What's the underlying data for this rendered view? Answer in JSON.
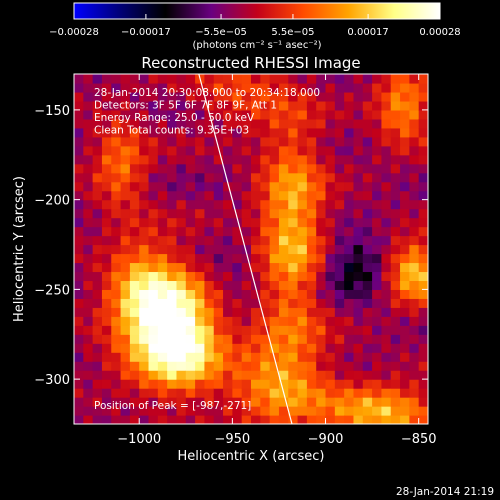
{
  "chart_data": {
    "type": "heatmap",
    "title": "Reconstructed RHESSI Image",
    "xlabel": "Heliocentric X (arcsec)",
    "ylabel": "Heliocentric Y (arcsec)",
    "xlim": [
      -1035,
      -845
    ],
    "ylim": [
      -325,
      -130
    ],
    "xticks": [
      -1000,
      -950,
      -900,
      -850
    ],
    "xtick_labels": [
      "−1000",
      "−950",
      "−900",
      "−850"
    ],
    "yticks": [
      -150,
      -200,
      -250,
      -300
    ],
    "ytick_labels": [
      "−150",
      "−200",
      "−250",
      "−300"
    ],
    "colorbar": {
      "unit_label": "(photons cm⁻² s⁻¹ asec⁻²)",
      "range": [
        -0.00028,
        0.00028
      ],
      "ticks": [
        -0.00028,
        -0.00017,
        -5.5e-05,
        5.5e-05,
        0.00017,
        0.00028
      ],
      "tick_labels": [
        "−0.00028",
        "−0.00017",
        "−5.5e−05",
        "5.5e−05",
        "0.00017",
        "0.00028"
      ],
      "colormap": [
        "#0000ff",
        "#000078",
        "#000000",
        "#6a0080",
        "#c3001a",
        "#ff4a00",
        "#ffa400",
        "#ffff88",
        "#ffffff"
      ]
    },
    "annotations": [
      "28-Jan-2014 20:30:08.000 to 20:34:18.000",
      "Detectors: 3F 5F 6F 7F 8F 9F, Att 1",
      "Energy Range: 25.0 - 50.0 keV",
      "Clean    Total counts: 9.35E+03"
    ],
    "peak_label": "Position of Peak = [-987,-271]",
    "peak": [
      -987,
      -271
    ],
    "limb_line": [
      [
        -968,
        -130
      ],
      [
        -918,
        -325
      ]
    ]
  },
  "footer": "28-Jan-2014 21:19"
}
